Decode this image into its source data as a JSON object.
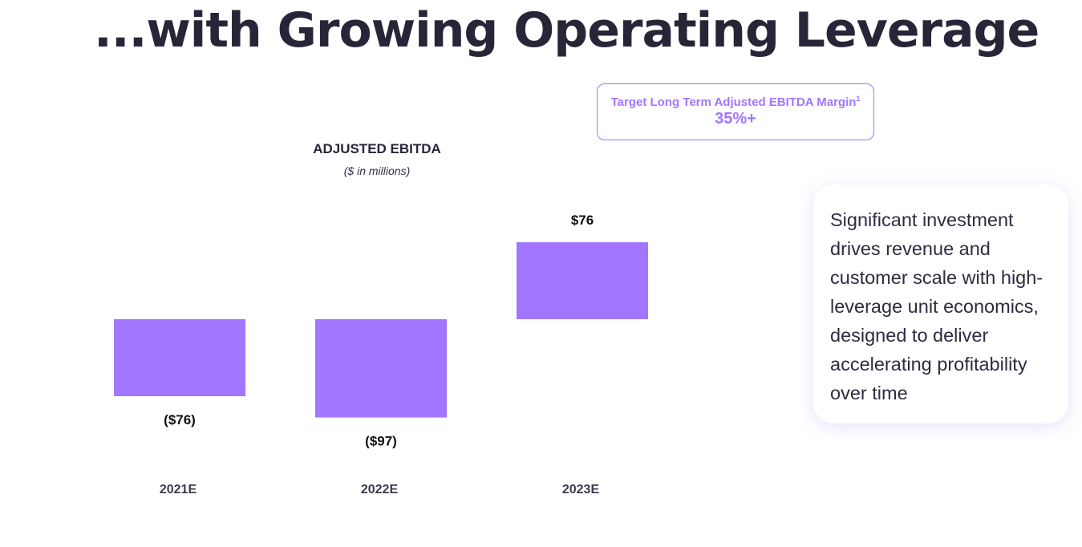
{
  "headline": "...with Growing Operating Leverage",
  "target_box": {
    "label": "Target Long Term Adjusted EBITDA Margin",
    "footnote": "1",
    "value": "35%+"
  },
  "callout": {
    "text": "Significant investment drives revenue and customer scale with high-leverage unit economics, designed to deliver accelerating profitability over time"
  },
  "colors": {
    "bar": "#a276ff",
    "accent": "#a276ff",
    "text": "#272638"
  },
  "chart_data": {
    "type": "bar",
    "title": "ADJUSTED EBITDA",
    "subtitle": "($ in millions)",
    "xlabel": "",
    "ylabel": "",
    "categories": [
      "2021E",
      "2022E",
      "2023E"
    ],
    "values": [
      -76,
      -97,
      76
    ],
    "data_labels": [
      "($76)",
      "($97)",
      "$76"
    ],
    "ylim": [
      -97,
      76
    ],
    "grid": false,
    "legend": "none"
  }
}
